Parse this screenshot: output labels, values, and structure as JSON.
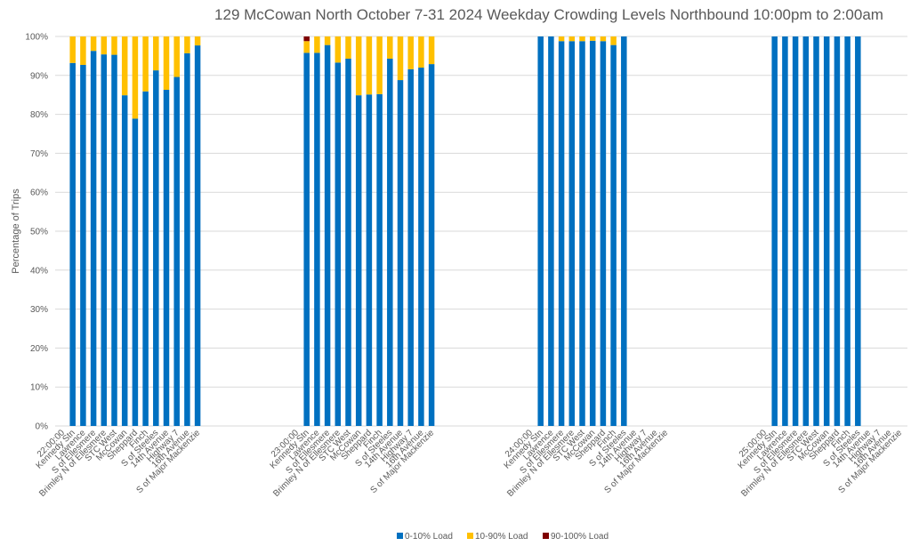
{
  "chart_data": {
    "type": "bar",
    "stacked": true,
    "title": "129 McCowan North October 7-31 2024  Weekday Crowding Levels Northbound 10:00pm to 2:00am",
    "xlabel": "",
    "ylabel": "Percentage of Trips",
    "ylim": [
      0,
      100
    ],
    "yticks": [
      "0%",
      "10%",
      "20%",
      "30%",
      "40%",
      "50%",
      "60%",
      "70%",
      "80%",
      "90%",
      "100%"
    ],
    "grid": true,
    "legend_position": "bottom",
    "legend": [
      {
        "name": "0-10% Load",
        "color": "#0070c0"
      },
      {
        "name": "10-90% Load",
        "color": "#ffc000"
      },
      {
        "name": "90-100% Load",
        "color": "#7f0000"
      }
    ],
    "stops": [
      "Kennedy Stn",
      "Lawrence",
      "S of Ellesmere",
      "Brimley N of Ellesmere",
      "STC West",
      "McCowan",
      "Sheppard",
      "Finch",
      "S of Steeles",
      "14th Avenue",
      "Highway 7",
      "16th Avenue",
      "S of Major Mackenzie"
    ],
    "groups": [
      {
        "hour": "22:00:00",
        "load_0_10": [
          93.2,
          92.7,
          96.3,
          95.4,
          95.3,
          84.9,
          78.9,
          85.9,
          91.3,
          86.3,
          89.6,
          95.7,
          97.7
        ],
        "load_10_90": [
          6.8,
          7.3,
          3.7,
          4.6,
          4.7,
          15.1,
          21.1,
          14.1,
          8.7,
          13.7,
          10.4,
          4.3,
          2.3
        ],
        "load_90_100": [
          0,
          0,
          0,
          0,
          0,
          0,
          0,
          0,
          0,
          0,
          0,
          0,
          0
        ]
      },
      {
        "hour": "23:00:00",
        "load_0_10": [
          95.8,
          95.8,
          97.8,
          93.3,
          94.3,
          84.9,
          85.1,
          85.2,
          94.3,
          88.8,
          91.6,
          92.0,
          92.9
        ],
        "load_10_90": [
          3.0,
          4.2,
          2.2,
          6.7,
          5.7,
          15.1,
          14.9,
          14.8,
          5.7,
          11.2,
          8.4,
          8.0,
          7.1
        ],
        "load_90_100": [
          1.2,
          0,
          0,
          0,
          0,
          0,
          0,
          0,
          0,
          0,
          0,
          0,
          0
        ]
      },
      {
        "hour": "24:00:00",
        "load_0_10": [
          100,
          100,
          98.8,
          98.8,
          98.8,
          98.9,
          98.8,
          97.8,
          100,
          null,
          null,
          null,
          null
        ],
        "load_10_90": [
          0,
          0,
          1.2,
          1.2,
          1.2,
          1.1,
          1.2,
          2.2,
          0,
          null,
          null,
          null,
          null
        ],
        "load_90_100": [
          0,
          0,
          0,
          0,
          0,
          0,
          0,
          0,
          0,
          null,
          null,
          null,
          null
        ]
      },
      {
        "hour": "25:00:00",
        "load_0_10": [
          100,
          100,
          100,
          100,
          100,
          100,
          100,
          100,
          100,
          null,
          null,
          null,
          null
        ],
        "load_10_90": [
          0,
          0,
          0,
          0,
          0,
          0,
          0,
          0,
          0,
          null,
          null,
          null,
          null
        ],
        "load_90_100": [
          0,
          0,
          0,
          0,
          0,
          0,
          0,
          0,
          0,
          null,
          null,
          null,
          null
        ]
      }
    ]
  }
}
